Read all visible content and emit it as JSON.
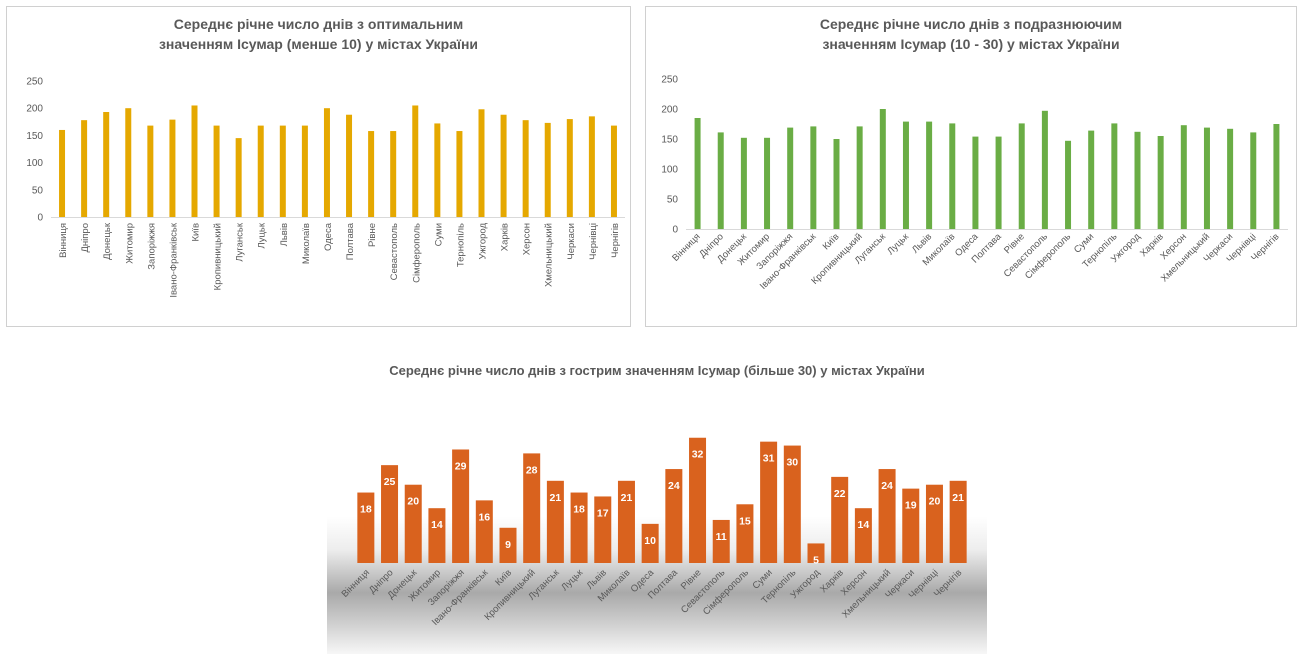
{
  "chart_data": [
    {
      "type": "bar",
      "title": "Середнє річне число днів з оптимальним значенням Ісумар (менше 10) у містах України",
      "categories": [
        "Вінниця",
        "Дніпро",
        "Донецьк",
        "Житомир",
        "Запоріжжя",
        "Івано-Франківськ",
        "Київ",
        "Кропивницький",
        "Луганськ",
        "Луцьк",
        "Львів",
        "Миколаїв",
        "Одеса",
        "Полтава",
        "Рівне",
        "Севастополь",
        "Сімферополь",
        "Суми",
        "Тернопіль",
        "Ужгород",
        "Харків",
        "Херсон",
        "Хмельницький",
        "Черкаси",
        "Чернівці",
        "Чернігів"
      ],
      "values": [
        160,
        178,
        193,
        200,
        168,
        179,
        205,
        168,
        145,
        168,
        168,
        168,
        200,
        188,
        158,
        158,
        205,
        172,
        158,
        198,
        188,
        178,
        173,
        180,
        185,
        168
      ],
      "ylim": [
        0,
        250
      ],
      "yticks": [
        0,
        50,
        100,
        150,
        200,
        250
      ],
      "color": "#E5A800",
      "grid": false
    },
    {
      "type": "bar",
      "title": "Середнє річне число днів з подразнюючим значенням Ісумар (10 - 30) у містах України",
      "categories": [
        "Вінниця",
        "Дніпро",
        "Донецьк",
        "Житомир",
        "Запоріжжя",
        "Івано-Франківськ",
        "Київ",
        "Кропивницький",
        "Луганськ",
        "Луцьк",
        "Львів",
        "Миколаїв",
        "Одеса",
        "Полтава",
        "Рівне",
        "Севастополь",
        "Сімферополь",
        "Суми",
        "Тернопіль",
        "Ужгород",
        "Харків",
        "Херсон",
        "Хмельницький",
        "Черкаси",
        "Чернівці",
        "Чернігів"
      ],
      "values": [
        185,
        161,
        152,
        152,
        169,
        171,
        150,
        171,
        200,
        179,
        179,
        176,
        154,
        154,
        176,
        197,
        147,
        164,
        176,
        162,
        155,
        173,
        169,
        167,
        161,
        175
      ],
      "ylim": [
        0,
        250
      ],
      "yticks": [
        0,
        50,
        100,
        150,
        200,
        250
      ],
      "color": "#6AAD45",
      "grid": false
    },
    {
      "type": "bar",
      "title": "Середнє річне число днів з гострим значенням Ісумар (більше 30) у містах України",
      "categories": [
        "Вінниця",
        "Дніпро",
        "Донецьк",
        "Житомир",
        "Запоріжжя",
        "Івано-Франківськ",
        "Київ",
        "Кропивницький",
        "Луганськ",
        "Луцьк",
        "Львів",
        "Миколаїв",
        "Одеса",
        "Полтава",
        "Рівне",
        "Севастополь",
        "Сімферополь",
        "Суми",
        "Тернопіль",
        "Ужгород",
        "Харків",
        "Херсон",
        "Хмельницький",
        "Черкаси",
        "Чернівці",
        "Чернігів"
      ],
      "values": [
        18,
        25,
        20,
        14,
        29,
        16,
        9,
        28,
        21,
        18,
        17,
        21,
        10,
        24,
        32,
        11,
        15,
        31,
        30,
        5,
        22,
        14,
        24,
        19,
        20,
        21
      ],
      "data_labels": true,
      "color": "#D9621E",
      "ylim": [
        0,
        35
      ],
      "axis_visible": false
    }
  ]
}
